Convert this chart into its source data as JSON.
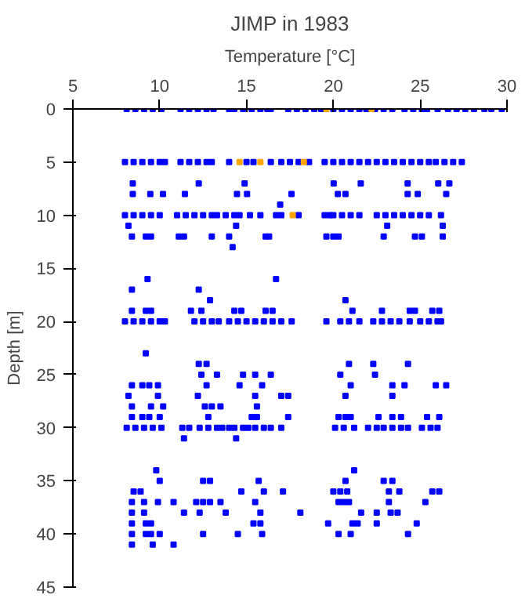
{
  "chart_data": {
    "type": "scatter",
    "title": "JIMP in 1983",
    "xlabel": "Temperature [°C]",
    "ylabel": "Depth [m]",
    "xlim": [
      5,
      30
    ],
    "ylim": [
      45,
      0
    ],
    "xticks": [
      5,
      10,
      15,
      20,
      25,
      30
    ],
    "yticks": [
      0,
      5,
      10,
      15,
      20,
      25,
      30,
      35,
      40,
      45
    ],
    "grid": false,
    "marker": "square",
    "series": [
      {
        "color": "#0000ff",
        "x": [
          8.1,
          8.6,
          9.1,
          9.6,
          10.1,
          11.2,
          11.7,
          12.2,
          12.7,
          13.1,
          14.0,
          14.3,
          14.8,
          15.3,
          15.8,
          16.2,
          16.4,
          17.4,
          17.9,
          18.4,
          18.9,
          19.3,
          20.0,
          20.5,
          21.0,
          21.5,
          21.9,
          22.4,
          22.9,
          23.4,
          24.1,
          24.6,
          25.1,
          25.4,
          26.0,
          26.6,
          27.1,
          27.6,
          28.1,
          28.7,
          29.1,
          29.7
        ],
        "values": [
          0,
          0,
          0,
          0,
          0,
          0,
          0,
          0,
          0,
          0,
          0,
          0,
          0,
          0,
          0,
          0,
          0,
          0,
          0,
          0,
          0,
          0,
          0,
          0,
          0,
          0,
          0,
          0,
          0,
          0,
          0,
          0,
          0,
          0,
          0,
          0,
          0,
          0,
          0,
          0,
          0,
          0
        ]
      },
      {
        "color": "#0000ff",
        "x": [
          8.0,
          8.5,
          9.0,
          9.5,
          10.0,
          10.3,
          11.2,
          11.7,
          12.2,
          12.7,
          13.0,
          14.0,
          15.0,
          15.4,
          16.4,
          17.0,
          17.5,
          18.0,
          18.6,
          19.5,
          20.0,
          20.5,
          21.0,
          21.5,
          22.0,
          22.5,
          23.0,
          23.5,
          24.0,
          24.5,
          25.0,
          25.5,
          25.9,
          26.4,
          26.9,
          27.4
        ],
        "values": [
          5,
          5,
          5,
          5,
          5,
          5,
          5,
          5,
          5,
          5,
          5,
          5,
          5,
          5,
          5,
          5,
          5,
          5,
          5,
          5,
          5,
          5,
          5,
          5,
          5,
          5,
          5,
          5,
          5,
          5,
          5,
          5,
          5,
          5,
          5,
          5
        ]
      },
      {
        "color": "#0000ff",
        "x": [
          8.45,
          12.25,
          14.89,
          20.02,
          21.58,
          24.28,
          26.04,
          26.68,
          8.45,
          9.46,
          10.19,
          11.45,
          14.45,
          15.03,
          17.59,
          20.26,
          20.7,
          24.28,
          24.86,
          26.5,
          16.94
        ],
        "values": [
          7,
          7,
          7,
          7,
          7,
          7,
          7,
          7,
          8,
          8,
          8,
          8,
          8,
          8,
          8,
          8,
          8,
          8,
          8,
          8,
          9
        ]
      },
      {
        "color": "#0000ff",
        "x": [
          8.0,
          8.5,
          9.0,
          9.5,
          10.0,
          11.0,
          11.5,
          12.0,
          12.5,
          13.0,
          13.3,
          13.8,
          14.3,
          14.6,
          15.2,
          15.8,
          16.7,
          17.0,
          18.0,
          19.5,
          19.8,
          20.0,
          20.5,
          21.0,
          21.5,
          22.5,
          23.0,
          23.5,
          24.0,
          24.5,
          25.0,
          25.5,
          26.2
        ],
        "values": [
          10,
          10,
          10,
          10,
          10,
          10,
          10,
          10,
          10,
          10,
          10,
          10,
          10,
          10,
          10,
          10,
          10,
          10,
          10,
          10,
          10,
          10,
          10,
          10,
          10,
          10,
          10,
          10,
          10,
          10,
          10,
          10,
          10
        ]
      },
      {
        "color": "#0000ff",
        "x": [
          8.2,
          14.4,
          23.1,
          26.3,
          8.4,
          9.2,
          9.5,
          11.1,
          11.4,
          13.0,
          14.0,
          16.1,
          16.3,
          19.6,
          20.0,
          20.3,
          22.9,
          24.7,
          25.1,
          26.3,
          14.2,
          9.3,
          16.7,
          8.4,
          12.25,
          12.9,
          20.7
        ],
        "values": [
          11,
          11,
          11,
          11,
          12,
          12,
          12,
          12,
          12,
          12,
          12,
          12,
          12,
          12,
          12,
          12,
          12,
          12,
          12,
          12,
          13,
          16,
          16,
          17,
          17,
          18,
          18
        ]
      },
      {
        "color": "#0000ff",
        "x": [
          8.4,
          9.2,
          9.5,
          11.8,
          12.4,
          14.3,
          14.7,
          16.1,
          16.5,
          21.1,
          22.8,
          24.4,
          24.7,
          25.7,
          26.1
        ],
        "values": [
          19,
          19,
          19,
          19,
          19,
          19,
          19,
          19,
          19,
          19,
          19,
          19,
          19,
          19,
          19
        ]
      },
      {
        "color": "#0000ff",
        "x": [
          8.0,
          8.5,
          9.0,
          9.5,
          10.0,
          10.3,
          12.0,
          12.5,
          13.0,
          13.4,
          14.0,
          14.5,
          15.0,
          15.5,
          16.0,
          16.5,
          17.0,
          17.6,
          19.6,
          20.4,
          20.9,
          21.5,
          22.3,
          22.8,
          23.3,
          23.8,
          24.4,
          25.0,
          25.5,
          26.0,
          26.2
        ],
        "values": [
          20,
          20,
          20,
          20,
          20,
          20,
          20,
          20,
          20,
          20,
          20,
          20,
          20,
          20,
          20,
          20,
          20,
          20,
          20,
          20,
          20,
          20,
          20,
          20,
          20,
          20,
          20,
          20,
          20,
          20,
          20
        ]
      },
      {
        "color": "#0000ff",
        "x": [
          9.2,
          12.25,
          12.7,
          20.9,
          22.3,
          24.3,
          12.4,
          13.3,
          14.8,
          15.5,
          16.4,
          20.4,
          22.4,
          8.4,
          9.0,
          9.4,
          9.9,
          12.7,
          14.6,
          15.9,
          21.0,
          23.4,
          24.1,
          25.9,
          26.5
        ],
        "values": [
          23,
          24,
          24,
          24,
          24,
          24,
          25,
          25,
          25,
          25,
          25,
          25,
          25,
          26,
          26,
          26,
          26,
          26,
          26,
          26,
          26,
          26,
          26,
          26,
          26
        ]
      },
      {
        "color": "#0000ff",
        "x": [
          8.2,
          9.9,
          12.2,
          15.5,
          17.0,
          17.4,
          20.7,
          23.4,
          8.4,
          9.5,
          10.2,
          12.6,
          13.0,
          13.5,
          15.6,
          8.4,
          9.0,
          9.4,
          10.0,
          12.8,
          15.3,
          15.6,
          17.4,
          20.3,
          20.7,
          21.0,
          22.6,
          23.4,
          23.9,
          25.4,
          26.1
        ],
        "values": [
          27,
          27,
          27,
          27,
          27,
          27,
          27,
          27,
          28,
          28,
          28,
          28,
          28,
          28,
          28,
          29,
          29,
          29,
          29,
          29,
          29,
          29,
          29,
          29,
          29,
          29,
          29,
          29,
          29,
          29,
          29
        ]
      },
      {
        "color": "#0000ff",
        "x": [
          8.1,
          8.6,
          9.1,
          9.6,
          10.1,
          11.3,
          11.7,
          12.3,
          12.8,
          13.3,
          13.6,
          14.0,
          14.3,
          14.8,
          15.1,
          15.5,
          16.0,
          16.4,
          17.0,
          20.1,
          20.6,
          21.2,
          22.0,
          22.5,
          22.9,
          23.4,
          23.9,
          24.3,
          25.1,
          25.6,
          26.0,
          11.4,
          14.4
        ],
        "values": [
          30,
          30,
          30,
          30,
          30,
          30,
          30,
          30,
          30,
          30,
          30,
          30,
          30,
          30,
          30,
          30,
          30,
          30,
          30,
          30,
          30,
          30,
          30,
          30,
          30,
          30,
          30,
          30,
          30,
          30,
          30,
          31,
          31
        ]
      },
      {
        "color": "#0000ff",
        "x": [
          9.8,
          21.2,
          10.0,
          12.5,
          12.9,
          15.7,
          20.7,
          22.9,
          23.4,
          8.5,
          8.9,
          14.7,
          16.0,
          17.1,
          20.0,
          20.4,
          20.8,
          23.2,
          23.8,
          25.7,
          26.1
        ],
        "values": [
          34,
          34,
          35,
          35,
          35,
          35,
          35,
          35,
          35,
          36,
          36,
          36,
          36,
          36,
          36,
          36,
          36,
          36,
          36,
          36,
          36
        ]
      },
      {
        "color": "#0000ff",
        "x": [
          8.4,
          9.1,
          9.9,
          10.8,
          12.1,
          12.5,
          12.9,
          13.5,
          15.5,
          20.3,
          20.6,
          20.9,
          23.2,
          25.3,
          8.4,
          9.1,
          11.4,
          12.3,
          13.8,
          15.8,
          18.1,
          21.6,
          22.5,
          23.3,
          23.7
        ],
        "values": [
          37,
          37,
          37,
          37,
          37,
          37,
          37,
          37,
          37,
          37,
          37,
          37,
          37,
          37,
          38,
          38,
          38,
          38,
          38,
          38,
          38,
          38,
          38,
          38,
          38
        ]
      },
      {
        "color": "#0000ff",
        "x": [
          8.4,
          9.2,
          9.5,
          15.4,
          15.8,
          19.7,
          21.1,
          21.4,
          22.5,
          24.8,
          8.4,
          9.2,
          9.5,
          10.0,
          12.5,
          14.5,
          15.9,
          20.3,
          21.0,
          24.3,
          8.4,
          9.6,
          10.8
        ],
        "values": [
          39,
          39,
          39,
          39,
          39,
          39,
          39,
          39,
          39,
          39,
          40,
          40,
          40,
          40,
          40,
          40,
          40,
          40,
          40,
          40,
          41,
          41,
          41
        ]
      },
      {
        "color": "#ffa500",
        "x": [
          19.6,
          22.2,
          14.6,
          15.8,
          18.3,
          17.66
        ],
        "values": [
          0,
          0,
          5,
          5,
          5,
          10
        ]
      }
    ]
  }
}
